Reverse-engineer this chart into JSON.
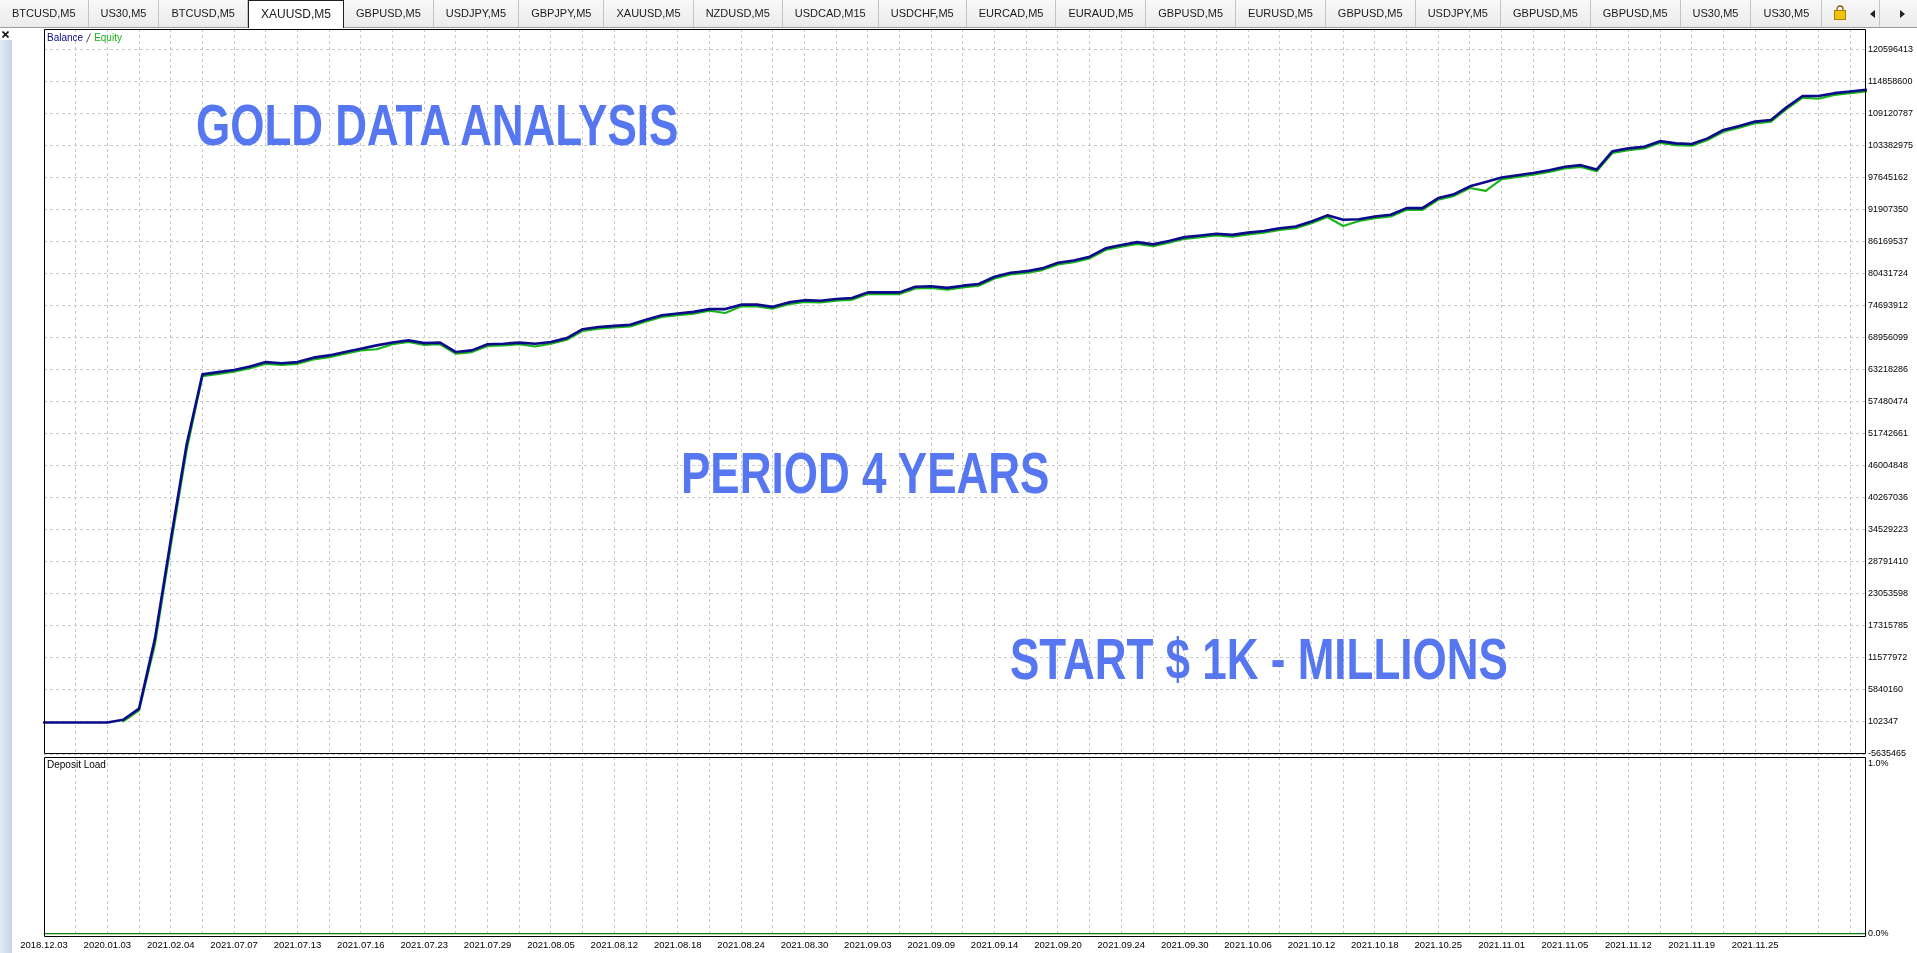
{
  "chart_data": [
    {
      "type": "other",
      "annotations": [
        "BTCUSD,M5",
        "US30,M5",
        "BTCUSD,M5",
        "XAUUSD,M5",
        "GBPUSD,M5",
        "USDJPY,M5",
        "GBPJPY,M5",
        "XAUUSD,M5",
        "NZDUSD,M5",
        "USDCAD,M15",
        "USDCHF,M5",
        "EURCAD,M5",
        "EURAUD,M5",
        "GBPUSD,M5",
        "EURUSD,M5",
        "GBPUSD,M5",
        "USDJPY,M5",
        "GBPUSD,M5",
        "GBPUSD,M5",
        "US30,M5",
        "US30,M5"
      ]
    },
    {
      "type": "line",
      "categories": [
        "2018.12.03",
        null,
        null,
        null,
        "2020.01.03",
        null,
        null,
        null,
        "2021.02.04",
        null,
        null,
        null,
        "2021.07.07",
        null,
        null,
        null,
        "2021.07.13",
        null,
        null,
        null,
        "2021.07.16",
        null,
        null,
        null,
        "2021.07.23",
        null,
        null,
        null,
        "2021.07.29",
        null,
        null,
        null,
        "2021.08.05",
        null,
        null,
        null,
        "2021.08.12",
        null,
        null,
        null,
        "2021.08.18",
        null,
        null,
        null,
        "2021.08.24",
        null,
        null,
        null,
        "2021.08.30",
        null,
        null,
        null,
        "2021.09.03",
        null,
        null,
        null,
        "2021.09.09",
        null,
        null,
        null,
        "2021.09.14",
        null,
        null,
        null,
        "2021.09.20",
        null,
        null,
        null,
        "2021.09.24",
        null,
        null,
        null,
        "2021.09.30",
        null,
        null,
        null,
        "2021.10.06",
        null,
        null,
        null,
        "2021.10.12",
        null,
        null,
        null,
        "2021.10.18",
        null,
        null,
        null,
        "2021.10.25",
        null,
        null,
        null,
        "2021.11.01",
        null,
        null,
        null,
        "2021.11.05",
        null,
        null,
        null,
        "2021.11.12",
        null,
        null,
        null,
        "2021.11.19",
        null,
        null,
        null,
        "2021.11.25",
        null,
        null,
        null,
        null,
        null,
        null,
        null
      ],
      "series": [
        {
          "name": "Balance",
          "color": "#0a0a8a",
          "values": [
            0,
            0,
            0,
            0,
            0,
            500000,
            2500000,
            15000000,
            32700000,
            49800000,
            62400000,
            62800000,
            63200000,
            63800000,
            64600000,
            64400000,
            64600000,
            65400000,
            65800000,
            66400000,
            67000000,
            67600000,
            68100000,
            68500000,
            68000000,
            68100000,
            66400000,
            66700000,
            67800000,
            67900000,
            68100000,
            67900000,
            68200000,
            68900000,
            70500000,
            70900000,
            71100000,
            71300000,
            72200000,
            73000000,
            73300000,
            73600000,
            74100000,
            74100000,
            74900000,
            74900000,
            74500000,
            75300000,
            75700000,
            75600000,
            75900000,
            76100000,
            77100000,
            77100000,
            77100000,
            78100000,
            78200000,
            77900000,
            78300000,
            78600000,
            79900000,
            80600000,
            80900000,
            81400000,
            82400000,
            82800000,
            83500000,
            85000000,
            85600000,
            86100000,
            85700000,
            86300000,
            87000000,
            87300000,
            87600000,
            87400000,
            87800000,
            88100000,
            88600000,
            88900000,
            89800000,
            90900000,
            90100000,
            90200000,
            90700000,
            91000000,
            92200000,
            92200000,
            94000000,
            94700000,
            96100000,
            96900000,
            97700000,
            98100000,
            98500000,
            99000000,
            99600000,
            99900000,
            99100000,
            102400000,
            102900000,
            103200000,
            104200000,
            103800000,
            103700000,
            104700000,
            106200000,
            106900000,
            107700000,
            108000000,
            110300000,
            112300000,
            112300000,
            112800000,
            113100000,
            113400000
          ]
        },
        {
          "name": "Equity",
          "color": "#19b419",
          "values": [
            null,
            null,
            null,
            null,
            null,
            200000,
            2200000,
            14000000,
            31700000,
            48800000,
            62100000,
            62500000,
            62900000,
            63500000,
            64300000,
            64100000,
            64300000,
            65100000,
            65500000,
            66100000,
            66700000,
            66900000,
            67800000,
            68200000,
            67700000,
            67800000,
            66100000,
            66400000,
            67500000,
            67600000,
            67800000,
            67400000,
            67900000,
            68600000,
            70200000,
            70600000,
            70800000,
            71000000,
            71900000,
            72700000,
            73000000,
            73300000,
            73800000,
            73400000,
            74600000,
            74600000,
            74200000,
            75000000,
            75400000,
            75300000,
            75600000,
            75800000,
            76800000,
            76800000,
            76800000,
            77800000,
            77900000,
            77600000,
            78000000,
            78300000,
            79600000,
            80300000,
            80600000,
            81100000,
            82100000,
            82500000,
            83200000,
            84700000,
            85300000,
            85800000,
            85400000,
            86000000,
            86700000,
            87000000,
            87300000,
            87100000,
            87500000,
            87800000,
            88300000,
            88600000,
            89500000,
            90600000,
            89000000,
            89900000,
            90400000,
            90700000,
            91900000,
            91900000,
            93700000,
            94400000,
            95800000,
            95300000,
            97400000,
            97800000,
            98200000,
            98700000,
            99300000,
            99600000,
            98800000,
            102100000,
            102600000,
            102900000,
            103900000,
            103500000,
            103400000,
            104400000,
            105900000,
            106600000,
            107400000,
            107700000,
            110000000,
            112000000,
            111800000,
            112500000,
            112800000,
            113100000
          ]
        }
      ],
      "ylim": [
        -5635465,
        124300000
      ],
      "yticks": [
        -5635465,
        102347,
        5840160,
        11577972,
        17315785,
        23053598,
        28791410,
        34529223,
        40267036,
        46004848,
        51742661,
        57480474,
        63218286,
        68956099,
        74693912,
        80431724,
        86169537,
        91907350,
        97645162,
        103382975,
        109120787,
        114858600,
        120596413
      ],
      "grid": true,
      "legend": "top left",
      "tick_labels": "y",
      "annotations": [
        "GOLD DATA ANALYSIS",
        "PERIOD 4 YEARS",
        "START $ 1K - MILLIONS"
      ]
    },
    {
      "type": "line",
      "title": "Deposit Load",
      "categories": [
        "2018.12.03",
        null,
        null,
        null,
        "2020.01.03",
        null,
        null,
        null,
        "2021.02.04",
        null,
        null,
        null,
        "2021.07.07",
        null,
        null,
        null,
        "2021.07.13",
        null,
        null,
        null,
        "2021.07.16",
        null,
        null,
        null,
        "2021.07.23",
        null,
        null,
        null,
        "2021.07.29",
        null,
        null,
        null,
        "2021.08.05",
        null,
        null,
        null,
        "2021.08.12",
        null,
        null,
        null,
        "2021.08.18",
        null,
        null,
        null,
        "2021.08.24",
        null,
        null,
        null,
        "2021.08.30",
        null,
        null,
        null,
        "2021.09.03",
        null,
        null,
        null,
        "2021.09.09",
        null,
        null,
        null,
        "2021.09.14",
        null,
        null,
        null,
        "2021.09.20",
        null,
        null,
        null,
        "2021.09.24",
        null,
        null,
        null,
        "2021.09.30",
        null,
        null,
        null,
        "2021.10.06",
        null,
        null,
        null,
        "2021.10.12",
        null,
        null,
        null,
        "2021.10.18",
        null,
        null,
        null,
        "2021.10.25",
        null,
        null,
        null,
        "2021.11.01",
        null,
        null,
        null,
        "2021.11.05",
        null,
        null,
        null,
        "2021.11.12",
        null,
        null,
        null,
        "2021.11.19",
        null,
        null,
        null,
        "2021.11.25",
        null,
        null,
        null,
        null,
        null,
        null,
        null
      ],
      "color": "#0c7a0c",
      "values": [
        0,
        0,
        0,
        0,
        0,
        0,
        0,
        0,
        0,
        0,
        0,
        0,
        0,
        0,
        0,
        0,
        0,
        0,
        0,
        0,
        0,
        0,
        0,
        0,
        0,
        0,
        0,
        0,
        0,
        0,
        0,
        0,
        0,
        0,
        0,
        0,
        0,
        0,
        0,
        0,
        0,
        0,
        0,
        0,
        0,
        0,
        0,
        0,
        0,
        0,
        0,
        0,
        0,
        0,
        0,
        0,
        0,
        0,
        0,
        0,
        0,
        0,
        0,
        0,
        0,
        0,
        0,
        0,
        0,
        0,
        0,
        0,
        0,
        0,
        0,
        0,
        0,
        0,
        0,
        0,
        0,
        0,
        0,
        0,
        0,
        0,
        0,
        0,
        0,
        0,
        0,
        0,
        0,
        0,
        0,
        0,
        0,
        0,
        0,
        0,
        0,
        0,
        0,
        0,
        0,
        0,
        0,
        0,
        0,
        0,
        0,
        0,
        0,
        0,
        0,
        0
      ],
      "ylim": [
        -0.02,
        1.04
      ],
      "yticks": [
        {
          "value": 0,
          "label": "0.0%"
        },
        {
          "value": 1,
          "label": "1.0%"
        }
      ],
      "grid": "x"
    }
  ]
}
